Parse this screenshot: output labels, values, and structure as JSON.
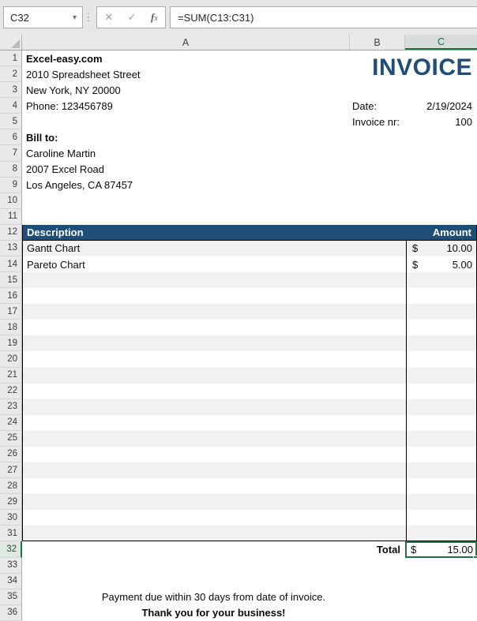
{
  "formula_bar": {
    "name_box": "C32",
    "formula": "=SUM(C13:C31)"
  },
  "icons": {
    "name_box_dropdown": "▾",
    "separator_dots": "⋮",
    "cancel": "✕",
    "enter": "✓",
    "insert_function_f": "f",
    "insert_function_x": "x"
  },
  "grid": {
    "columns": [
      "A",
      "B",
      "C"
    ],
    "row_numbers": [
      1,
      2,
      3,
      4,
      5,
      6,
      7,
      8,
      9,
      10,
      11,
      12,
      13,
      14,
      15,
      16,
      17,
      18,
      19,
      20,
      21,
      22,
      23,
      24,
      25,
      26,
      27,
      28,
      29,
      30,
      31,
      32,
      33,
      34,
      35,
      36
    ],
    "selected_cell": "C32"
  },
  "company": {
    "name": "Excel-easy.com",
    "street": "2010 Spreadsheet Street",
    "city": "New York, NY 20000",
    "phone": "Phone: 123456789"
  },
  "invoice": {
    "title": "INVOICE",
    "date_label": "Date:",
    "date_value": "2/19/2024",
    "nr_label": "Invoice nr:",
    "nr_value": "100"
  },
  "bill_to": {
    "label": "Bill to:",
    "name": "Caroline Martin",
    "street": "2007 Excel Road",
    "city": "Los Angeles, CA 87457"
  },
  "table": {
    "header": {
      "description": "Description",
      "amount": "Amount"
    },
    "items": [
      {
        "description": "Gantt Chart",
        "currency": "$",
        "amount": "10.00"
      },
      {
        "description": "Pareto Chart",
        "currency": "$",
        "amount": "5.00"
      }
    ],
    "total_label": "Total",
    "total_currency": "$",
    "total_value": "15.00"
  },
  "footer": {
    "line1": "Payment due within 30 days from date of invoice.",
    "line2": "Thank you for your business!"
  },
  "colors": {
    "accent_blue": "#1F4E79",
    "band_gray": "#F1F1F1",
    "selection_green": "#217346"
  }
}
